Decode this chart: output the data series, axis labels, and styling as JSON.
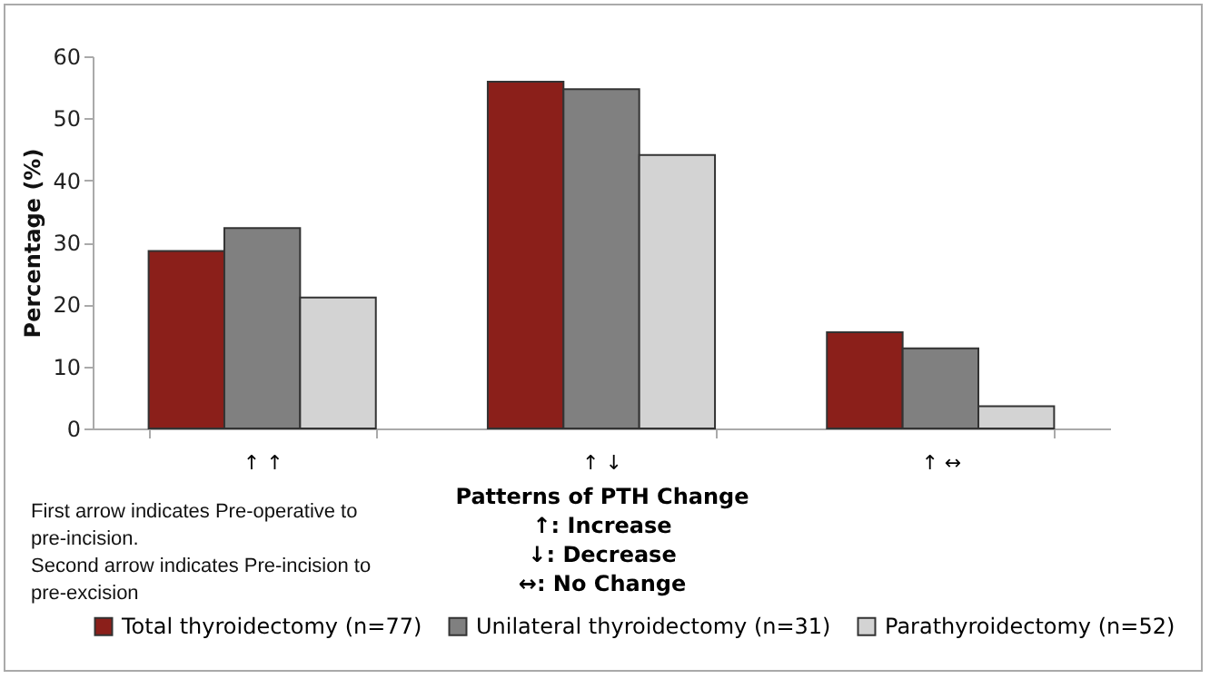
{
  "chart_data": {
    "type": "bar",
    "xlabel": "Patterns of PTH Change\n↑: Increase\n↓: Decrease\n↔: No Change",
    "ylabel": "Percentage (%)",
    "categories": [
      "↑ ↑",
      "↑ ↓",
      "↑ ↔"
    ],
    "series": [
      {
        "name": "Total thyroidectomy (n=77)",
        "color": "#8b1f1a",
        "values": [
          28.6,
          55.9,
          15.5
        ]
      },
      {
        "name": "Unilateral thyroidectomy (n=31)",
        "color": "#808080",
        "values": [
          32.3,
          54.7,
          12.9
        ]
      },
      {
        "name": "Parathyroidectomy (n=52)",
        "color": "#d3d3d3",
        "values": [
          21.1,
          44.1,
          3.6
        ]
      }
    ],
    "ylim": [
      0,
      60
    ],
    "yticks": [
      0,
      10,
      20,
      30,
      40,
      50,
      60
    ],
    "grid": false,
    "legend": "bottom",
    "annotations": [
      "First arrow indicates Pre-operative to pre-incision.",
      "Second arrow indicates Pre-incision to pre-excision"
    ]
  }
}
